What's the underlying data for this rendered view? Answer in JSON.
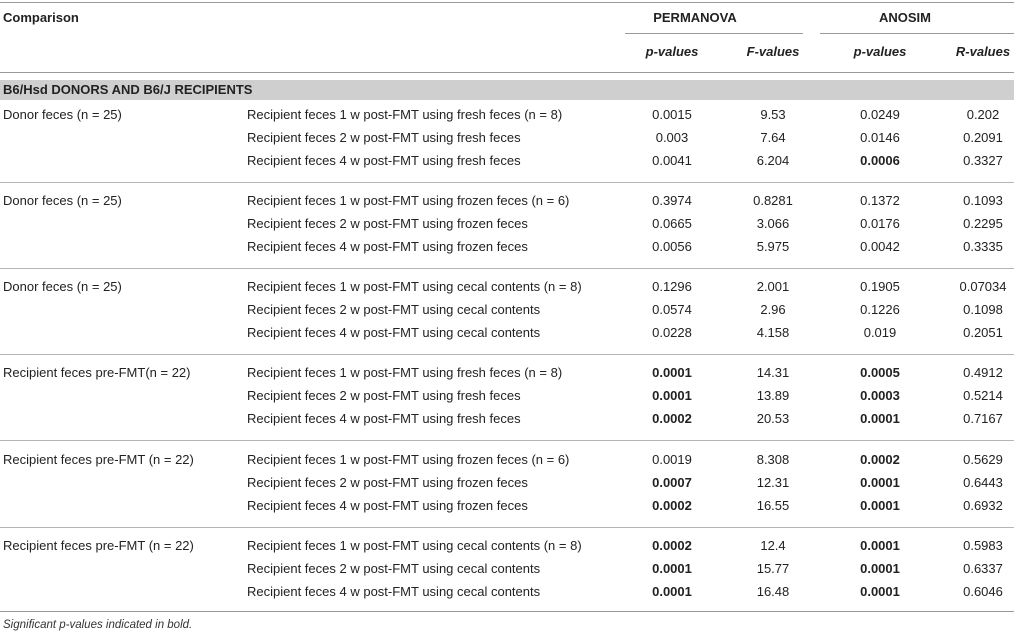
{
  "header": {
    "comparison": "Comparison",
    "permanova": "PERMANOVA",
    "anosim": "ANOSIM",
    "p_values_a": "p-values",
    "f_values": "F-values",
    "p_values_b": "p-values",
    "r_values": "R-values"
  },
  "section_label": "B6/Hsd DONORS AND B6/J RECIPIENTS",
  "groups": [
    {
      "label": "Donor feces (n = 25)",
      "rows": [
        {
          "desc": "Recipient feces 1 w post-FMT using fresh feces (n = 8)",
          "perm_p": "0.0015",
          "perm_p_bold": false,
          "f": "9.53",
          "anosim_p": "0.0249",
          "anosim_p_bold": false,
          "r": "0.202"
        },
        {
          "desc": "Recipient feces 2 w post-FMT using fresh feces",
          "perm_p": "0.003",
          "perm_p_bold": false,
          "f": "7.64",
          "anosim_p": "0.0146",
          "anosim_p_bold": false,
          "r": "0.2091"
        },
        {
          "desc": "Recipient feces 4 w post-FMT using fresh feces",
          "perm_p": "0.0041",
          "perm_p_bold": false,
          "f": "6.204",
          "anosim_p": "0.0006",
          "anosim_p_bold": true,
          "r": "0.3327"
        }
      ]
    },
    {
      "label": "Donor feces (n = 25)",
      "rows": [
        {
          "desc": "Recipient feces 1 w post-FMT using frozen feces (n = 6)",
          "perm_p": "0.3974",
          "perm_p_bold": false,
          "f": "0.8281",
          "anosim_p": "0.1372",
          "anosim_p_bold": false,
          "r": "0.1093"
        },
        {
          "desc": "Recipient feces 2 w post-FMT using frozen feces",
          "perm_p": "0.0665",
          "perm_p_bold": false,
          "f": "3.066",
          "anosim_p": "0.0176",
          "anosim_p_bold": false,
          "r": "0.2295"
        },
        {
          "desc": "Recipient feces 4 w post-FMT using frozen feces",
          "perm_p": "0.0056",
          "perm_p_bold": false,
          "f": "5.975",
          "anosim_p": "0.0042",
          "anosim_p_bold": false,
          "r": "0.3335"
        }
      ]
    },
    {
      "label": "Donor feces (n = 25)",
      "rows": [
        {
          "desc": "Recipient feces 1 w post-FMT using cecal contents (n = 8)",
          "perm_p": "0.1296",
          "perm_p_bold": false,
          "f": "2.001",
          "anosim_p": "0.1905",
          "anosim_p_bold": false,
          "r": "0.07034"
        },
        {
          "desc": "Recipient feces 2 w post-FMT using cecal contents",
          "perm_p": "0.0574",
          "perm_p_bold": false,
          "f": "2.96",
          "anosim_p": "0.1226",
          "anosim_p_bold": false,
          "r": "0.1098"
        },
        {
          "desc": "Recipient feces 4 w post-FMT using cecal contents",
          "perm_p": "0.0228",
          "perm_p_bold": false,
          "f": "4.158",
          "anosim_p": "0.019",
          "anosim_p_bold": false,
          "r": "0.2051"
        }
      ]
    },
    {
      "label": "Recipient feces pre-FMT(n = 22)",
      "rows": [
        {
          "desc": "Recipient feces 1 w post-FMT using fresh feces (n = 8)",
          "perm_p": "0.0001",
          "perm_p_bold": true,
          "f": "14.31",
          "anosim_p": "0.0005",
          "anosim_p_bold": true,
          "r": "0.4912"
        },
        {
          "desc": "Recipient feces 2 w post-FMT using fresh feces",
          "perm_p": "0.0001",
          "perm_p_bold": true,
          "f": "13.89",
          "anosim_p": "0.0003",
          "anosim_p_bold": true,
          "r": "0.5214"
        },
        {
          "desc": "Recipient feces 4 w post-FMT using fresh feces",
          "perm_p": "0.0002",
          "perm_p_bold": true,
          "f": "20.53",
          "anosim_p": "0.0001",
          "anosim_p_bold": true,
          "r": "0.7167"
        }
      ]
    },
    {
      "label": "Recipient feces pre-FMT (n = 22)",
      "rows": [
        {
          "desc": "Recipient feces 1 w post-FMT using frozen feces (n = 6)",
          "perm_p": "0.0019",
          "perm_p_bold": false,
          "f": "8.308",
          "anosim_p": "0.0002",
          "anosim_p_bold": true,
          "r": "0.5629"
        },
        {
          "desc": "Recipient feces 2 w post-FMT using frozen feces",
          "perm_p": "0.0007",
          "perm_p_bold": true,
          "f": "12.31",
          "anosim_p": "0.0001",
          "anosim_p_bold": true,
          "r": "0.6443"
        },
        {
          "desc": "Recipient feces 4 w post-FMT using frozen feces",
          "perm_p": "0.0002",
          "perm_p_bold": true,
          "f": "16.55",
          "anosim_p": "0.0001",
          "anosim_p_bold": true,
          "r": "0.6932"
        }
      ]
    },
    {
      "label": "Recipient feces pre-FMT (n = 22)",
      "rows": [
        {
          "desc": "Recipient feces 1 w post-FMT using cecal contents (n = 8)",
          "perm_p": "0.0002",
          "perm_p_bold": true,
          "f": "12.4",
          "anosim_p": "0.0001",
          "anosim_p_bold": true,
          "r": "0.5983"
        },
        {
          "desc": "Recipient feces 2 w post-FMT using cecal contents",
          "perm_p": "0.0001",
          "perm_p_bold": true,
          "f": "15.77",
          "anosim_p": "0.0001",
          "anosim_p_bold": true,
          "r": "0.6337"
        },
        {
          "desc": "Recipient feces 4 w post-FMT using cecal contents",
          "perm_p": "0.0001",
          "perm_p_bold": true,
          "f": "16.48",
          "anosim_p": "0.0001",
          "anosim_p_bold": true,
          "r": "0.6046"
        }
      ]
    }
  ],
  "footnote": "Significant p-values indicated in bold."
}
